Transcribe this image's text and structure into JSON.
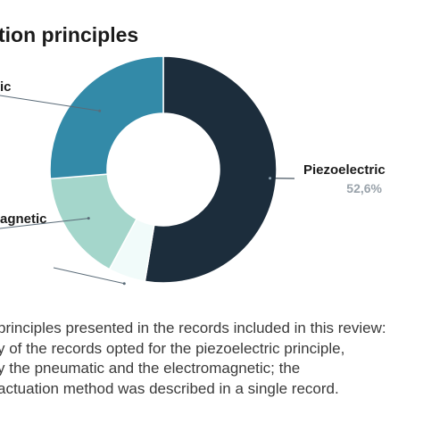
{
  "chart_data": {
    "type": "pie",
    "title": "tion principles",
    "slices": [
      {
        "label": "Piezoelectric",
        "value": 52.6,
        "value_label": "52,6%",
        "color": "#1c2d3c"
      },
      {
        "label": "",
        "value": 5.3,
        "value_label": "",
        "color": "#f1fbfa"
      },
      {
        "label": "agnetic",
        "value": 15.8,
        "value_label": "",
        "color": "#a4d6cb"
      },
      {
        "label": "ic",
        "value": 26.3,
        "value_label": "",
        "color": "#338aa8"
      }
    ],
    "legend": "none"
  },
  "caption": {
    "lines": [
      "principles presented in the records included in this review:",
      "y of the records opted for the piezoelectric principle,",
      "y the pneumatic and the electromagnetic; the",
      "actuation method was described in a single record."
    ]
  }
}
